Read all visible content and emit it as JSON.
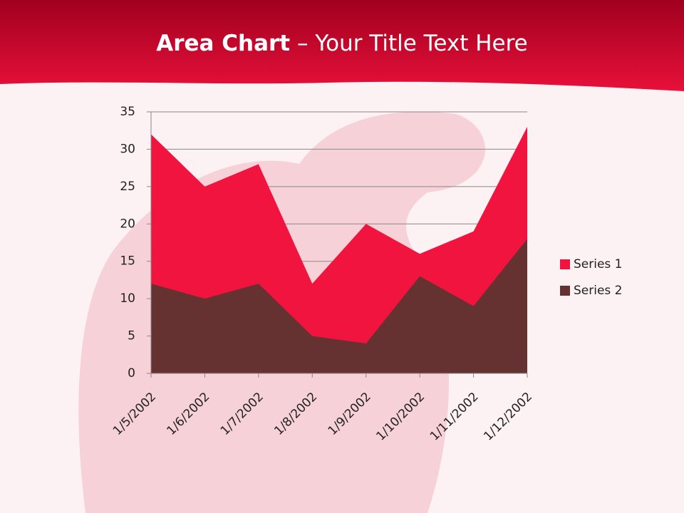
{
  "chart_data": {
    "type": "area",
    "title": [
      "Area Chart",
      " – Your Title Text Here"
    ],
    "categories": [
      "1/5/2002",
      "1/6/2002",
      "1/7/2002",
      "1/8/2002",
      "1/9/2002",
      "1/10/2002",
      "1/11/2002",
      "1/12/2002"
    ],
    "series": [
      {
        "name": "Series 1",
        "color": "#f0143f",
        "values": [
          32,
          25,
          28,
          12,
          20,
          16,
          19,
          33
        ]
      },
      {
        "name": "Series 2",
        "color": "#653131",
        "values": [
          12,
          10,
          12,
          5,
          4,
          13,
          9,
          18
        ]
      }
    ],
    "ylim": [
      0,
      35
    ],
    "yticks": [
      0,
      5,
      10,
      15,
      20,
      25,
      30,
      35
    ],
    "grid": true,
    "legend": "right"
  }
}
